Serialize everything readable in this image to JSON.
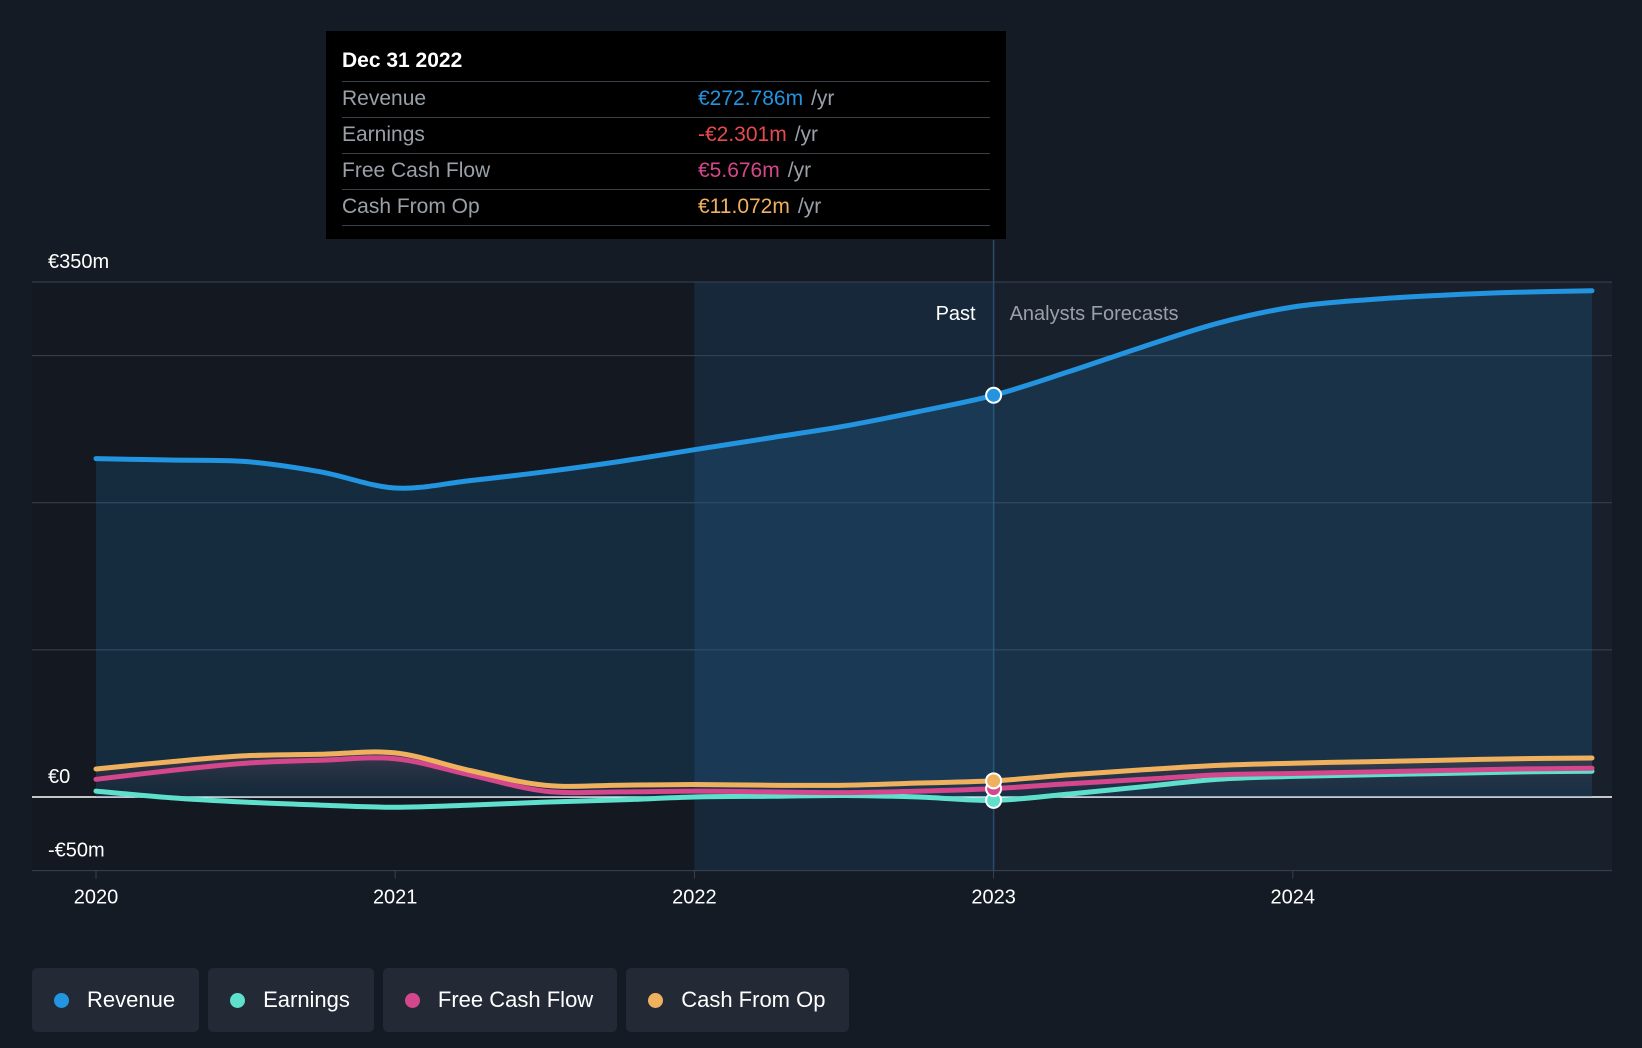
{
  "tooltip": {
    "date": "Dec 31 2022",
    "rows": [
      {
        "label": "Revenue",
        "value": "€272.786m",
        "unit": "/yr",
        "color": "#2394df"
      },
      {
        "label": "Earnings",
        "value": "-€2.301m",
        "unit": "/yr",
        "color": "#e64a51"
      },
      {
        "label": "Free Cash Flow",
        "value": "€5.676m",
        "unit": "/yr",
        "color": "#d5478c"
      },
      {
        "label": "Cash From Op",
        "value": "€11.072m",
        "unit": "/yr",
        "color": "#f0b15f"
      }
    ]
  },
  "chart_data": {
    "type": "line",
    "title": "",
    "xlabel": "",
    "ylabel": "",
    "ylim": [
      -50,
      350
    ],
    "x_ticks": [
      "2020",
      "2021",
      "2022",
      "2023",
      "2024"
    ],
    "y_tick_labels": [
      {
        "value": 350,
        "label": "€350m"
      },
      {
        "value": 0,
        "label": "€0"
      },
      {
        "value": -50,
        "label": "-€50m"
      }
    ],
    "gridlines_y": [
      350,
      300,
      200,
      100,
      0,
      -50
    ],
    "highlight_start": 2022,
    "split_x": 2023,
    "past_label": "Past",
    "forecast_label": "Analysts Forecasts",
    "series": [
      {
        "name": "Revenue",
        "color": "#2394df",
        "x": [
          2020,
          2020.25,
          2020.5,
          2020.75,
          2021,
          2021.25,
          2021.5,
          2021.75,
          2022,
          2022.25,
          2022.5,
          2022.75,
          2023,
          2023.25,
          2023.5,
          2023.75,
          2024,
          2024.25,
          2024.5,
          2024.75,
          2025
        ],
        "y": [
          230,
          229,
          228,
          221,
          210,
          215,
          221,
          228,
          236,
          244,
          252,
          262,
          273,
          289,
          306,
          322,
          333,
          338,
          341,
          343,
          344
        ]
      },
      {
        "name": "Earnings",
        "color": "#5fe0cc",
        "x": [
          2020,
          2020.25,
          2020.5,
          2020.75,
          2021,
          2021.25,
          2021.5,
          2021.75,
          2022,
          2022.25,
          2022.5,
          2022.75,
          2023,
          2023.25,
          2023.5,
          2023.75,
          2024,
          2024.25,
          2024.5,
          2024.75,
          2025
        ],
        "y": [
          4,
          -0.5,
          -3.5,
          -5.5,
          -7,
          -5.5,
          -3.5,
          -2,
          0,
          0.5,
          1,
          0,
          -2.3,
          2,
          7,
          12,
          14,
          15,
          16,
          17,
          17.5
        ]
      },
      {
        "name": "Free Cash Flow",
        "color": "#d5478c",
        "x": [
          2020,
          2020.25,
          2020.5,
          2020.75,
          2021,
          2021.25,
          2021.5,
          2021.75,
          2022,
          2022.25,
          2022.5,
          2022.75,
          2023,
          2023.25,
          2023.5,
          2023.75,
          2024,
          2024.25,
          2024.5,
          2024.75,
          2025
        ],
        "y": [
          12,
          18,
          23,
          25,
          26,
          15,
          4,
          3.5,
          4,
          3.5,
          3,
          4,
          5.7,
          9,
          12,
          15,
          16,
          17,
          18,
          19,
          19.5
        ]
      },
      {
        "name": "Cash From Op",
        "color": "#f0b15f",
        "x": [
          2020,
          2020.25,
          2020.5,
          2020.75,
          2021,
          2021.25,
          2021.5,
          2021.75,
          2022,
          2022.25,
          2022.5,
          2022.75,
          2023,
          2023.25,
          2023.5,
          2023.75,
          2024,
          2024.25,
          2024.5,
          2024.75,
          2025
        ],
        "y": [
          19,
          24,
          28,
          29,
          30,
          18,
          8,
          8,
          8.5,
          8,
          8,
          9.5,
          11,
          15,
          18.5,
          21.5,
          23,
          24,
          25,
          26,
          26.5
        ]
      }
    ]
  },
  "legend": [
    {
      "label": "Revenue",
      "color": "#2394df"
    },
    {
      "label": "Earnings",
      "color": "#5fe0cc"
    },
    {
      "label": "Free Cash Flow",
      "color": "#d5478c"
    },
    {
      "label": "Cash From Op",
      "color": "#f0b15f"
    }
  ]
}
